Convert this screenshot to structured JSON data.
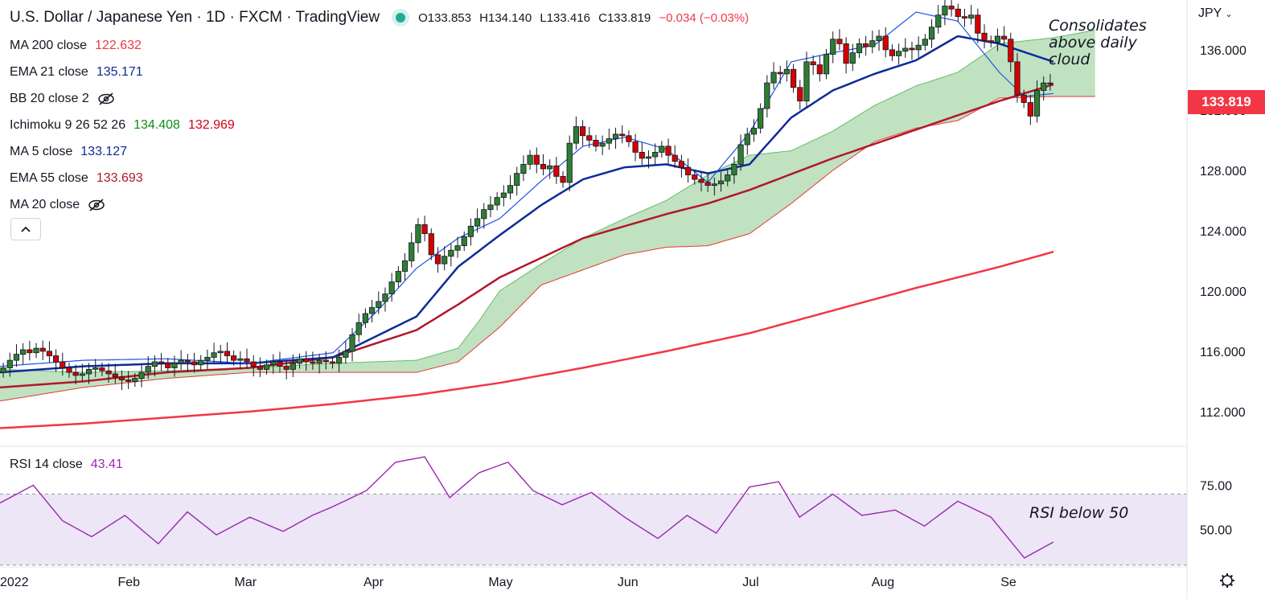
{
  "header": {
    "title": "U.S. Dollar / Japanese Yen · 1D · FXCM · TradingView",
    "open": "O133.853",
    "high": "H134.140",
    "low": "L133.416",
    "close": "C133.819",
    "change": "−0.034 (−0.03%)"
  },
  "currency_label": "JPY",
  "indicators": [
    {
      "name": "MA 200 close",
      "values": [
        "122.632"
      ],
      "colors": [
        "#f23645"
      ],
      "hidden": false
    },
    {
      "name": "EMA 21 close",
      "values": [
        "135.171"
      ],
      "colors": [
        "#0d2b9a"
      ],
      "hidden": false
    },
    {
      "name": "BB 20 close 2",
      "values": [],
      "colors": [],
      "hidden": true
    },
    {
      "name": "Ichimoku 9 26 52 26",
      "values": [
        "134.408",
        "132.969"
      ],
      "colors": [
        "#138a17",
        "#d0021b"
      ],
      "hidden": false
    },
    {
      "name": "MA 5 close",
      "values": [
        "133.127"
      ],
      "colors": [
        "#0d2b9a"
      ],
      "hidden": false
    },
    {
      "name": "EMA 55 close",
      "values": [
        "133.693"
      ],
      "colors": [
        "#b2182b"
      ],
      "hidden": false
    },
    {
      "name": "MA 20 close",
      "values": [],
      "colors": [],
      "hidden": true
    }
  ],
  "annotations": {
    "cloud_note": [
      "Consolidates",
      "above daily",
      "cloud"
    ],
    "rsi_note": "RSI below 50"
  },
  "last_price": "133.819",
  "rsi": {
    "name": "RSI 14 close",
    "value": "43.41"
  },
  "chart_data": {
    "type": "candlestick",
    "title": "U.S. Dollar / Japanese Yen · 1D · FXCM · TradingView",
    "y_axis": {
      "ticks": [
        "136.000",
        "132.000",
        "128.000",
        "124.000",
        "120.000",
        "116.000",
        "112.000"
      ],
      "ylim": [
        109.7,
        139.3
      ]
    },
    "x_axis": {
      "ticks": [
        "2022",
        "Feb",
        "Mar",
        "Apr",
        "May",
        "Jun",
        "Jul",
        "Aug",
        "Se"
      ],
      "range_days": [
        0,
        253
      ]
    },
    "grid": false,
    "closes": [
      114.9,
      115.4,
      115.8,
      116.1,
      115.9,
      116.2,
      116.0,
      115.7,
      115.3,
      114.9,
      114.6,
      114.4,
      114.5,
      114.8,
      114.9,
      114.7,
      114.5,
      114.3,
      114.1,
      114.0,
      114.2,
      114.6,
      115.0,
      115.3,
      115.2,
      114.9,
      115.2,
      115.4,
      115.3,
      115.1,
      115.4,
      115.6,
      115.9,
      116.0,
      115.7,
      115.4,
      115.5,
      115.3,
      115.0,
      114.8,
      115.1,
      115.3,
      115.0,
      114.8,
      115.2,
      115.5,
      115.3,
      115.2,
      115.4,
      115.3,
      115.2,
      115.6,
      116.0,
      117.1,
      117.9,
      118.5,
      118.9,
      119.3,
      119.8,
      120.6,
      121.3,
      122.0,
      123.2,
      124.4,
      123.8,
      122.4,
      121.8,
      122.3,
      122.7,
      123.0,
      123.6,
      124.3,
      124.8,
      125.4,
      125.7,
      126.2,
      126.5,
      127.0,
      127.8,
      128.4,
      129.0,
      128.4,
      128.1,
      128.3,
      127.6,
      127.2,
      129.8,
      130.9,
      130.3,
      130.0,
      129.6,
      129.8,
      130.1,
      130.4,
      130.3,
      129.9,
      129.2,
      128.8,
      128.9,
      129.2,
      129.6,
      129.0,
      128.6,
      128.2,
      127.7,
      127.4,
      127.2,
      127.0,
      127.1,
      127.3,
      127.7,
      128.4,
      129.7,
      130.4,
      130.8,
      132.1,
      133.8,
      134.5,
      134.4,
      134.7,
      133.5,
      132.6,
      135.2,
      135.0,
      134.4,
      135.7,
      136.7,
      136.4,
      135.1,
      135.8,
      136.4,
      136.2,
      136.6,
      136.9,
      136.0,
      135.6,
      135.9,
      136.1,
      136.0,
      136.3,
      136.7,
      137.5,
      138.3,
      138.9,
      138.7,
      138.2,
      138.1,
      138.3,
      137.1,
      136.6,
      136.5,
      136.9,
      136.7,
      135.2,
      133.0,
      132.5,
      131.6,
      133.3,
      133.8,
      133.8
    ],
    "series": [
      {
        "name": "MA 200 close",
        "x": [
          0,
          20,
          40,
          60,
          80,
          100,
          120,
          140,
          160,
          180,
          200,
          220,
          240,
          253
        ],
        "y": [
          110.9,
          111.2,
          111.6,
          112.0,
          112.5,
          113.1,
          113.9,
          114.9,
          116.0,
          117.2,
          118.7,
          120.2,
          121.6,
          122.6
        ]
      },
      {
        "name": "EMA 55 close",
        "x": [
          0,
          20,
          40,
          60,
          80,
          100,
          110,
          120,
          140,
          160,
          170,
          180,
          200,
          220,
          240,
          253
        ],
        "y": [
          113.6,
          114.0,
          114.6,
          114.9,
          115.6,
          117.4,
          119.1,
          120.9,
          123.5,
          125.1,
          125.8,
          126.7,
          128.8,
          130.7,
          132.6,
          133.7
        ]
      },
      {
        "name": "EMA 21 close",
        "x": [
          0,
          20,
          40,
          60,
          80,
          100,
          110,
          120,
          130,
          140,
          150,
          160,
          170,
          180,
          190,
          200,
          210,
          220,
          230,
          240,
          253
        ],
        "y": [
          114.6,
          115.0,
          115.2,
          115.2,
          115.6,
          118.3,
          121.6,
          123.7,
          125.7,
          127.4,
          128.2,
          128.4,
          127.8,
          128.4,
          131.5,
          133.3,
          134.4,
          135.3,
          136.9,
          136.4,
          135.2
        ]
      },
      {
        "name": "MA 5 close",
        "x": [
          0,
          20,
          40,
          60,
          80,
          90,
          100,
          110,
          120,
          130,
          140,
          150,
          160,
          170,
          180,
          190,
          200,
          210,
          220,
          230,
          240,
          246,
          253
        ],
        "y": [
          115.0,
          115.4,
          115.5,
          115.2,
          115.9,
          118.5,
          121.5,
          123.5,
          124.8,
          127.3,
          129.6,
          130.2,
          129.4,
          127.2,
          130.5,
          135.2,
          135.8,
          136.3,
          138.5,
          137.9,
          134.5,
          132.9,
          133.1
        ]
      }
    ],
    "rsi_series": {
      "name": "RSI 14 close",
      "ylim": [
        29,
        97
      ],
      "levels": [
        70,
        30
      ],
      "x": [
        0,
        8,
        15,
        22,
        30,
        38,
        45,
        52,
        60,
        68,
        75,
        80,
        88,
        95,
        102,
        108,
        115,
        122,
        128,
        135,
        142,
        150,
        158,
        165,
        172,
        180,
        187,
        192,
        200,
        207,
        215,
        222,
        230,
        238,
        246,
        253
      ],
      "y": [
        65,
        75,
        55,
        46,
        58,
        42,
        60,
        47,
        57,
        49,
        58,
        63,
        72,
        88,
        91,
        68,
        82,
        88,
        72,
        64,
        71,
        57,
        45,
        58,
        48,
        74,
        77,
        57,
        70,
        58,
        61,
        52,
        66,
        57,
        34,
        43
      ]
    }
  }
}
